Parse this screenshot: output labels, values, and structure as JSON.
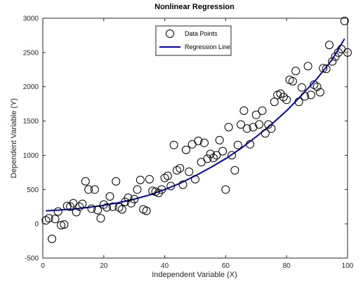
{
  "chart_data": {
    "type": "scatter",
    "title": "Nonlinear Regression",
    "xlabel": "Independent Variable (X)",
    "ylabel": "Dependent Variable (Y)",
    "xlim": [
      0,
      100
    ],
    "ylim": [
      -500,
      3000
    ],
    "xticks": [
      "0",
      "20",
      "40",
      "60",
      "80",
      "100"
    ],
    "yticks": [
      "-500",
      "0",
      "500",
      "1000",
      "1500",
      "2000",
      "2500",
      "3000"
    ],
    "grid": false,
    "legend_position": "top-center",
    "series": [
      {
        "name": "Data Points",
        "kind": "scatter",
        "marker": "open-circle",
        "color": "#000000",
        "x": [
          1,
          2,
          3,
          4,
          5,
          6,
          7,
          8,
          9,
          10,
          11,
          12,
          13,
          14,
          15,
          16,
          17,
          18,
          19,
          20,
          21,
          22,
          23,
          24,
          25,
          26,
          27,
          28,
          29,
          30,
          31,
          32,
          33,
          34,
          35,
          36,
          37,
          38,
          39,
          40,
          41,
          42,
          43,
          44,
          45,
          46,
          47,
          48,
          49,
          50,
          51,
          52,
          53,
          54,
          55,
          56,
          57,
          58,
          59,
          60,
          61,
          62,
          63,
          64,
          65,
          66,
          67,
          68,
          69,
          70,
          71,
          72,
          73,
          74,
          75,
          76,
          77,
          78,
          79,
          80,
          81,
          82,
          83,
          84,
          85,
          86,
          87,
          88,
          89,
          90,
          91,
          92,
          93,
          94,
          95,
          96,
          97,
          98,
          99,
          100
        ],
        "y": [
          50,
          80,
          -220,
          70,
          180,
          -20,
          -10,
          260,
          250,
          300,
          170,
          250,
          290,
          620,
          500,
          220,
          500,
          200,
          80,
          280,
          240,
          400,
          250,
          620,
          240,
          210,
          320,
          380,
          300,
          360,
          500,
          640,
          210,
          190,
          650,
          480,
          470,
          450,
          500,
          670,
          700,
          550,
          1150,
          780,
          810,
          570,
          1080,
          760,
          1160,
          650,
          1210,
          900,
          1180,
          950,
          1020,
          960,
          1000,
          1220,
          1060,
          500,
          1410,
          1000,
          780,
          1150,
          1450,
          1650,
          1390,
          1160,
          1410,
          1590,
          1450,
          1650,
          1320,
          1450,
          1390,
          1780,
          1880,
          1900,
          1850,
          1810,
          2100,
          2080,
          2230,
          1780,
          1990,
          1860,
          2300,
          1880,
          2030,
          2000,
          1920,
          2270,
          2260,
          2610,
          2370,
          2440,
          2500,
          2550,
          2960,
          2500
        ]
      },
      {
        "name": "Regression Line",
        "kind": "line",
        "color": "#0000cc",
        "x": [
          1,
          5,
          10,
          15,
          20,
          25,
          30,
          35,
          40,
          45,
          50,
          55,
          60,
          65,
          70,
          75,
          80,
          85,
          90,
          95,
          99
        ],
        "y": [
          190,
          200,
          215,
          240,
          270,
          310,
          360,
          420,
          500,
          590,
          700,
          820,
          950,
          1100,
          1270,
          1450,
          1650,
          1880,
          2120,
          2400,
          2700
        ]
      }
    ]
  }
}
